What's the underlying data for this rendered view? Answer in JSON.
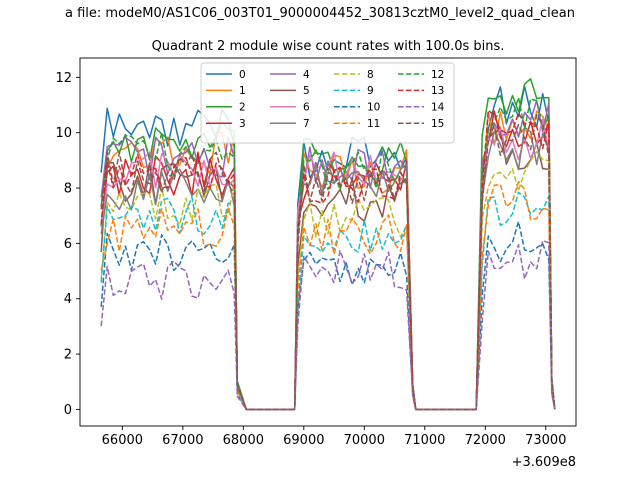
{
  "chart_data": {
    "type": "line",
    "suptitle": "a file: modeM0/AS1C06_003T01_9000004452_30813cztM0_level2_quad_clean",
    "title": "Quadrant 2 module wise count rates with 100.0s bins.",
    "xlabel": "",
    "ylabel": "",
    "x_offset_label": "+3.609e8",
    "xlim": [
      65300,
      73500
    ],
    "ylim": [
      -0.6,
      12.7
    ],
    "xticks": [
      66000,
      67000,
      68000,
      69000,
      70000,
      71000,
      72000,
      73000
    ],
    "xtick_labels": [
      "66000",
      "67000",
      "68000",
      "69000",
      "70000",
      "71000",
      "72000",
      "73000"
    ],
    "yticks": [
      0,
      2,
      4,
      6,
      8,
      10,
      12
    ],
    "ytick_labels": [
      "0",
      "2",
      "4",
      "6",
      "8",
      "10",
      "12"
    ],
    "grid": false,
    "legend": {
      "placement": "top-center",
      "columns": 4
    },
    "segments": [
      {
        "start": 65650,
        "end": 67850,
        "ramp_end": 68050
      },
      {
        "start": 68900,
        "end": 70750,
        "ramp_end": 70850
      },
      {
        "start": 71950,
        "end": 73050,
        "ramp_end": 73150
      }
    ],
    "series": [
      {
        "name": "0",
        "color": "#1f77b4",
        "dash": "solid",
        "levels": [
          10.2,
          9.1,
          10.9
        ]
      },
      {
        "name": "1",
        "color": "#ff7f0e",
        "dash": "solid",
        "levels": [
          9.3,
          8.6,
          10.3
        ]
      },
      {
        "name": "2",
        "color": "#2ca02c",
        "dash": "solid",
        "levels": [
          9.6,
          9.0,
          11.2
        ]
      },
      {
        "name": "3",
        "color": "#d62728",
        "dash": "solid",
        "levels": [
          8.5,
          8.3,
          10.0
        ]
      },
      {
        "name": "4",
        "color": "#9467bd",
        "dash": "solid",
        "levels": [
          9.1,
          8.8,
          10.4
        ]
      },
      {
        "name": "5",
        "color": "#8c564b",
        "dash": "solid",
        "levels": [
          8.2,
          7.6,
          9.3
        ]
      },
      {
        "name": "6",
        "color": "#e377c2",
        "dash": "solid",
        "levels": [
          8.7,
          8.6,
          9.7
        ]
      },
      {
        "name": "7",
        "color": "#7f7f7f",
        "dash": "solid",
        "levels": [
          8.0,
          8.4,
          9.4
        ]
      },
      {
        "name": "8",
        "color": "#bcbd22",
        "dash": "dashed",
        "levels": [
          7.4,
          7.0,
          8.7
        ]
      },
      {
        "name": "9",
        "color": "#17becf",
        "dash": "dashed",
        "levels": [
          6.9,
          6.3,
          7.1
        ]
      },
      {
        "name": "10",
        "color": "#1f77b4",
        "dash": "dashed",
        "levels": [
          5.6,
          5.3,
          6.1
        ]
      },
      {
        "name": "11",
        "color": "#ff7f0e",
        "dash": "dashed",
        "levels": [
          6.5,
          6.4,
          7.6
        ]
      },
      {
        "name": "12",
        "color": "#2ca02c",
        "dash": "dashed",
        "levels": [
          9.2,
          8.7,
          10.7
        ]
      },
      {
        "name": "13",
        "color": "#d62728",
        "dash": "dashed",
        "levels": [
          8.8,
          8.1,
          10.2
        ]
      },
      {
        "name": "14",
        "color": "#9467bd",
        "dash": "dashed",
        "levels": [
          4.7,
          5.0,
          5.5
        ]
      },
      {
        "name": "15",
        "color": "#8c564b",
        "dash": "dashed",
        "levels": [
          8.5,
          8.2,
          9.9
        ]
      }
    ]
  }
}
